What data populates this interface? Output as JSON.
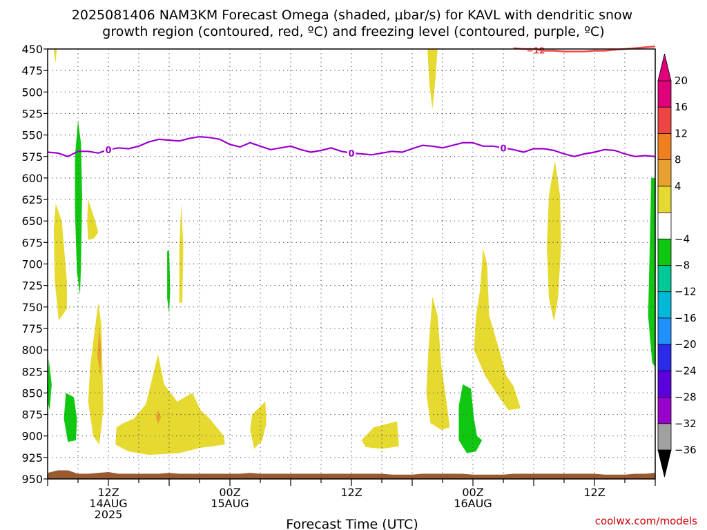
{
  "title_line1": "2025081406 NAM3KM Forecast Omega (shaded, μbar/s) for KAVL with dendritic snow",
  "title_line2": "growth region (contoured, red, ºC) and freezing level (contoured, purple, ºC)",
  "credit": "coolwx.com/models",
  "colors": {
    "omega_pos_weak": "#e6d930",
    "omega_pos_med": "#e8a030",
    "omega_neg_weak": "#10c810",
    "dendritic_contour": "#ee4444",
    "freezing_contour": "#9900cc",
    "terrain": "#9a5a30",
    "colorbar": [
      "#a0a0a0",
      "#9900cc",
      "#5a00dd",
      "#2a2ae8",
      "#1e90ff",
      "#00b8d8",
      "#00c896",
      "#10c810",
      "#ffffff",
      "#e6d930",
      "#e8a030",
      "#ee8020",
      "#ee4444",
      "#e0007a"
    ]
  },
  "chart_data": {
    "type": "heatmap",
    "xlabel": "Forecast Time (UTC)",
    "ylabel": "",
    "y_axis": {
      "unit": "hPa",
      "range": [
        450,
        950
      ],
      "inverted": true,
      "ticks": [
        450,
        475,
        500,
        525,
        550,
        575,
        600,
        625,
        650,
        675,
        700,
        725,
        750,
        775,
        800,
        825,
        850,
        875,
        900,
        925,
        950
      ]
    },
    "x_axis": {
      "unit": "hours since 2025-08-14 06Z",
      "range": [
        0,
        60
      ],
      "ticks": [
        {
          "hour": 6,
          "lines": [
            "12Z",
            "14AUG",
            "2025"
          ]
        },
        {
          "hour": 18,
          "lines": [
            "00Z",
            "15AUG"
          ]
        },
        {
          "hour": 30,
          "lines": [
            "12Z"
          ]
        },
        {
          "hour": 42,
          "lines": [
            "00Z",
            "16AUG"
          ]
        },
        {
          "hour": 54,
          "lines": [
            "12Z"
          ]
        }
      ]
    },
    "grid": true,
    "colorbar": {
      "labels": [
        "20",
        "16",
        "12",
        "8",
        "4",
        "−4",
        "−8",
        "−12",
        "−16",
        "−20",
        "−24",
        "−28",
        "−32",
        "−36"
      ]
    },
    "contour_labels": {
      "dendritic": "−12",
      "freezing": "0"
    },
    "freezing_level": {
      "hours": [
        0,
        1,
        2,
        3,
        4,
        5,
        6,
        7,
        8,
        9,
        10,
        11,
        12,
        13,
        14,
        15,
        16,
        17,
        18,
        19,
        20,
        21,
        22,
        23,
        24,
        25,
        26,
        27,
        28,
        29,
        30,
        31,
        32,
        33,
        34,
        35,
        36,
        37,
        38,
        39,
        40,
        41,
        42,
        43,
        44,
        45,
        46,
        47,
        48,
        49,
        50,
        51,
        52,
        53,
        54,
        55,
        56,
        57,
        58,
        59,
        60
      ],
      "pressure": [
        570,
        571,
        575,
        569,
        569,
        571,
        567,
        565,
        566,
        563,
        558,
        555,
        556,
        557,
        554,
        552,
        553,
        555,
        561,
        564,
        559,
        563,
        567,
        565,
        563,
        567,
        570,
        568,
        565,
        569,
        571,
        572,
        573,
        571,
        569,
        570,
        566,
        562,
        563,
        565,
        562,
        559,
        559,
        563,
        563,
        565,
        567,
        570,
        566,
        566,
        568,
        572,
        575,
        572,
        570,
        567,
        568,
        572,
        575,
        574,
        575
      ]
    },
    "dendritic_snow_top": {
      "hours": [
        46,
        47,
        48,
        49,
        50,
        51,
        52,
        53,
        54,
        55,
        56,
        57,
        58,
        59,
        60
      ],
      "pressure": [
        449,
        450,
        450,
        452,
        452,
        453,
        453,
        453,
        452,
        452,
        451,
        450,
        449,
        448,
        447
      ]
    },
    "terrain_top_pressure": [
      943,
      940,
      940,
      944,
      944,
      943,
      942,
      944,
      944,
      944,
      944,
      944,
      943,
      944,
      944,
      944,
      944,
      944,
      944,
      944,
      943,
      944,
      944,
      944,
      944,
      944,
      944,
      944,
      944,
      944,
      944,
      944,
      944,
      944,
      945,
      945,
      945,
      944,
      944,
      944,
      944,
      944,
      945,
      945,
      945,
      945,
      944,
      944,
      944,
      944,
      944,
      944,
      944,
      944,
      944,
      945,
      945,
      945,
      944,
      944,
      943
    ]
  }
}
